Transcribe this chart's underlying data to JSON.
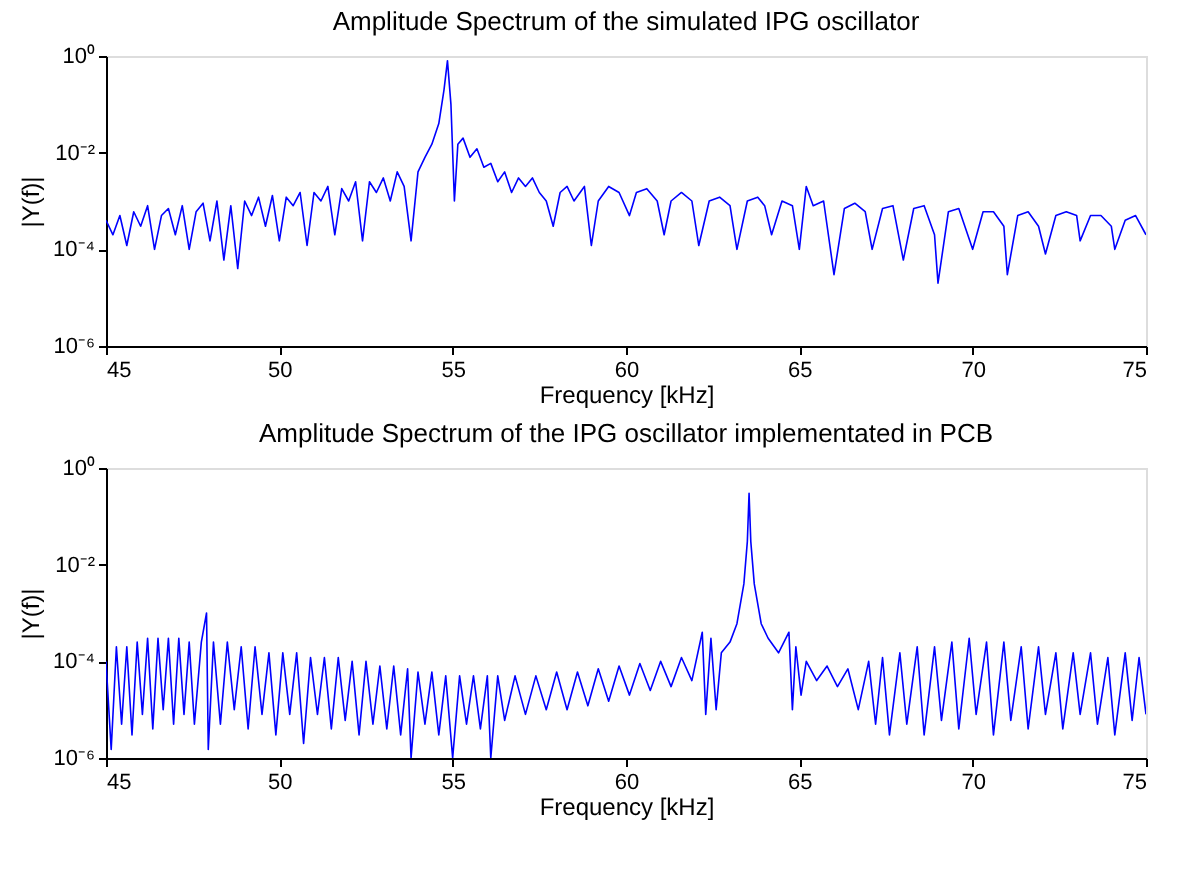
{
  "chart_data": [
    {
      "type": "line",
      "title": "Amplitude Spectrum of the simulated IPG oscillator",
      "xlabel": "Frequency [kHz]",
      "ylabel": "|Y(f)|",
      "log": "y",
      "grid": false,
      "marker": "none",
      "line_style": "solid",
      "xlim": [
        45,
        75
      ],
      "xticks": [
        45,
        50,
        55,
        60,
        65,
        70,
        75
      ],
      "ylim": [
        1e-06,
        1
      ],
      "yticks": [
        {
          "value": 1,
          "label": "10⁰"
        },
        {
          "value": 0.01,
          "label": "10⁻²"
        },
        {
          "value": 0.0001,
          "label": "10⁻⁴"
        },
        {
          "value": 1e-06,
          "label": "10⁻⁶"
        }
      ],
      "series": [
        {
          "color": "#0000ff",
          "x": [
            45.0,
            45.2,
            45.4,
            45.6,
            45.8,
            46.0,
            46.2,
            46.4,
            46.6,
            46.8,
            47.0,
            47.2,
            47.4,
            47.6,
            47.8,
            48.0,
            48.2,
            48.4,
            48.6,
            48.8,
            49.0,
            49.2,
            49.4,
            49.6,
            49.8,
            50.0,
            50.2,
            50.4,
            50.6,
            50.8,
            51.0,
            51.2,
            51.4,
            51.6,
            51.8,
            52.0,
            52.2,
            52.4,
            52.6,
            52.8,
            53.0,
            53.2,
            53.4,
            53.6,
            53.8,
            54.0,
            54.2,
            54.4,
            54.6,
            54.75,
            54.85,
            54.95,
            55.05,
            55.15,
            55.3,
            55.5,
            55.7,
            55.9,
            56.1,
            56.3,
            56.5,
            56.7,
            56.9,
            57.1,
            57.3,
            57.5,
            57.7,
            57.9,
            58.1,
            58.3,
            58.5,
            58.8,
            59.0,
            59.2,
            59.5,
            59.8,
            60.1,
            60.3,
            60.6,
            60.9,
            61.1,
            61.3,
            61.6,
            61.9,
            62.1,
            62.4,
            62.7,
            63.0,
            63.2,
            63.5,
            63.8,
            64.0,
            64.2,
            64.5,
            64.8,
            65.0,
            65.2,
            65.4,
            65.7,
            66.0,
            66.3,
            66.6,
            66.9,
            67.1,
            67.4,
            67.7,
            68.0,
            68.3,
            68.6,
            68.9,
            69.0,
            69.3,
            69.6,
            70.0,
            70.3,
            70.6,
            70.9,
            71.0,
            71.3,
            71.6,
            71.9,
            72.1,
            72.4,
            72.7,
            73.0,
            73.1,
            73.4,
            73.7,
            74.0,
            74.1,
            74.4,
            74.7,
            75.0
          ],
          "values": [
            0.0004,
            0.0002,
            0.0005,
            0.00012,
            0.0006,
            0.0003,
            0.0008,
            0.0001,
            0.0005,
            0.0007,
            0.0002,
            0.0008,
            0.0001,
            0.0006,
            0.0009,
            0.00015,
            0.001,
            6e-05,
            0.0008,
            4e-05,
            0.001,
            0.0005,
            0.0012,
            0.0003,
            0.0013,
            0.00015,
            0.0012,
            0.0008,
            0.0015,
            0.00012,
            0.0015,
            0.001,
            0.002,
            0.0002,
            0.0018,
            0.001,
            0.0025,
            0.00015,
            0.0025,
            0.0015,
            0.003,
            0.001,
            0.004,
            0.002,
            0.00015,
            0.004,
            0.008,
            0.015,
            0.04,
            0.2,
            0.8,
            0.1,
            0.001,
            0.015,
            0.02,
            0.008,
            0.012,
            0.005,
            0.006,
            0.0025,
            0.004,
            0.0015,
            0.003,
            0.002,
            0.003,
            0.0015,
            0.001,
            0.0003,
            0.0015,
            0.002,
            0.001,
            0.002,
            0.00012,
            0.001,
            0.002,
            0.0015,
            0.0005,
            0.0015,
            0.0018,
            0.001,
            0.0002,
            0.001,
            0.0015,
            0.001,
            0.00012,
            0.001,
            0.0012,
            0.0008,
            0.0001,
            0.001,
            0.0012,
            0.0008,
            0.0002,
            0.001,
            0.0008,
            0.0001,
            0.002,
            0.0008,
            0.001,
            3e-05,
            0.0007,
            0.0009,
            0.0006,
            0.0001,
            0.0007,
            0.0008,
            6e-05,
            0.0007,
            0.0008,
            0.0002,
            2e-05,
            0.0006,
            0.0007,
            0.0001,
            0.0006,
            0.0006,
            0.0003,
            3e-05,
            0.0005,
            0.0006,
            0.0003,
            8e-05,
            0.0005,
            0.0006,
            0.0005,
            0.00015,
            0.0005,
            0.0005,
            0.0003,
            0.0001,
            0.0004,
            0.0005,
            0.0002
          ]
        }
      ]
    },
    {
      "type": "line",
      "title": "Amplitude Spectrum of the IPG oscillator implementated in PCB",
      "xlabel": "Frequency [kHz]",
      "ylabel": "|Y(f)|",
      "log": "y",
      "grid": false,
      "marker": "none",
      "line_style": "solid",
      "xlim": [
        45,
        75
      ],
      "xticks": [
        45,
        50,
        55,
        60,
        65,
        70,
        75
      ],
      "ylim": [
        1e-06,
        1
      ],
      "yticks": [
        {
          "value": 1,
          "label": "10⁰"
        },
        {
          "value": 0.01,
          "label": "10⁻²"
        },
        {
          "value": 0.0001,
          "label": "10⁻⁴"
        },
        {
          "value": 1e-06,
          "label": "10⁻⁶"
        }
      ],
      "series": [
        {
          "color": "#0000ff",
          "x": [
            45.0,
            45.15,
            45.3,
            45.45,
            45.6,
            45.75,
            45.9,
            46.05,
            46.2,
            46.35,
            46.5,
            46.65,
            46.8,
            46.95,
            47.1,
            47.25,
            47.4,
            47.55,
            47.75,
            47.9,
            47.95,
            48.1,
            48.3,
            48.5,
            48.7,
            48.9,
            49.1,
            49.3,
            49.5,
            49.7,
            49.9,
            50.1,
            50.3,
            50.5,
            50.7,
            50.9,
            51.1,
            51.3,
            51.5,
            51.7,
            51.9,
            52.1,
            52.3,
            52.5,
            52.7,
            52.9,
            53.1,
            53.3,
            53.5,
            53.7,
            53.8,
            54.0,
            54.2,
            54.4,
            54.6,
            54.8,
            55.0,
            55.2,
            55.4,
            55.6,
            55.8,
            56.0,
            56.1,
            56.3,
            56.5,
            56.8,
            57.1,
            57.4,
            57.7,
            58.0,
            58.3,
            58.6,
            58.9,
            59.2,
            59.5,
            59.8,
            60.1,
            60.4,
            60.7,
            61.0,
            61.3,
            61.6,
            61.9,
            62.2,
            62.3,
            62.45,
            62.6,
            62.75,
            63.0,
            63.2,
            63.4,
            63.5,
            63.55,
            63.6,
            63.7,
            63.9,
            64.1,
            64.4,
            64.7,
            64.8,
            64.9,
            65.05,
            65.2,
            65.5,
            65.8,
            66.1,
            66.4,
            66.7,
            67.0,
            67.2,
            67.4,
            67.6,
            67.9,
            68.1,
            68.4,
            68.6,
            68.9,
            69.1,
            69.4,
            69.6,
            69.9,
            70.1,
            70.4,
            70.6,
            70.9,
            71.1,
            71.4,
            71.6,
            71.9,
            72.1,
            72.4,
            72.6,
            72.9,
            73.1,
            73.4,
            73.6,
            73.9,
            74.1,
            74.4,
            74.6,
            74.8,
            75.0
          ],
          "values": [
            0.0001,
            1.5e-06,
            0.0002,
            5e-06,
            0.0002,
            3e-06,
            0.00025,
            8e-06,
            0.0003,
            4e-06,
            0.0003,
            1e-05,
            0.0003,
            5e-06,
            0.0003,
            8e-06,
            0.00025,
            5e-06,
            0.00025,
            0.001,
            1.5e-06,
            0.00025,
            5e-06,
            0.00025,
            1e-05,
            0.0002,
            4e-06,
            0.0002,
            8e-06,
            0.00015,
            3e-06,
            0.00015,
            8e-06,
            0.00015,
            2e-06,
            0.00012,
            8e-06,
            0.00012,
            4e-06,
            0.00012,
            6e-06,
            0.0001,
            3e-06,
            0.0001,
            5e-06,
            8e-05,
            4e-06,
            8e-05,
            3e-06,
            7e-05,
            1e-06,
            6e-05,
            5e-06,
            6e-05,
            3e-06,
            5e-05,
            1e-06,
            5e-05,
            5e-06,
            5e-05,
            4e-06,
            5e-05,
            1e-06,
            5e-05,
            6e-06,
            5e-05,
            8e-06,
            5e-05,
            1e-05,
            6e-05,
            1e-05,
            6e-05,
            1.2e-05,
            7e-05,
            1.5e-05,
            8e-05,
            2e-05,
            9e-05,
            2.5e-05,
            0.0001,
            3e-05,
            0.00012,
            4e-05,
            0.0004,
            8e-06,
            0.0003,
            1e-05,
            0.00015,
            0.00025,
            0.0006,
            0.004,
            0.03,
            0.3,
            0.03,
            0.004,
            0.0006,
            0.0003,
            0.00015,
            0.0004,
            1e-05,
            0.0002,
            2e-05,
            0.0001,
            4e-05,
            8e-05,
            3e-05,
            7e-05,
            1e-05,
            0.0001,
            5e-06,
            0.00012,
            3e-06,
            0.00015,
            5e-06,
            0.0002,
            3e-06,
            0.0002,
            6e-06,
            0.00025,
            4e-06,
            0.0003,
            8e-06,
            0.00025,
            3e-06,
            0.00025,
            6e-06,
            0.0002,
            4e-06,
            0.0002,
            8e-06,
            0.00015,
            4e-06,
            0.00015,
            8e-06,
            0.00015,
            5e-06,
            0.00012,
            3e-06,
            0.00015,
            6e-06,
            0.00012,
            8e-06
          ]
        }
      ]
    }
  ]
}
